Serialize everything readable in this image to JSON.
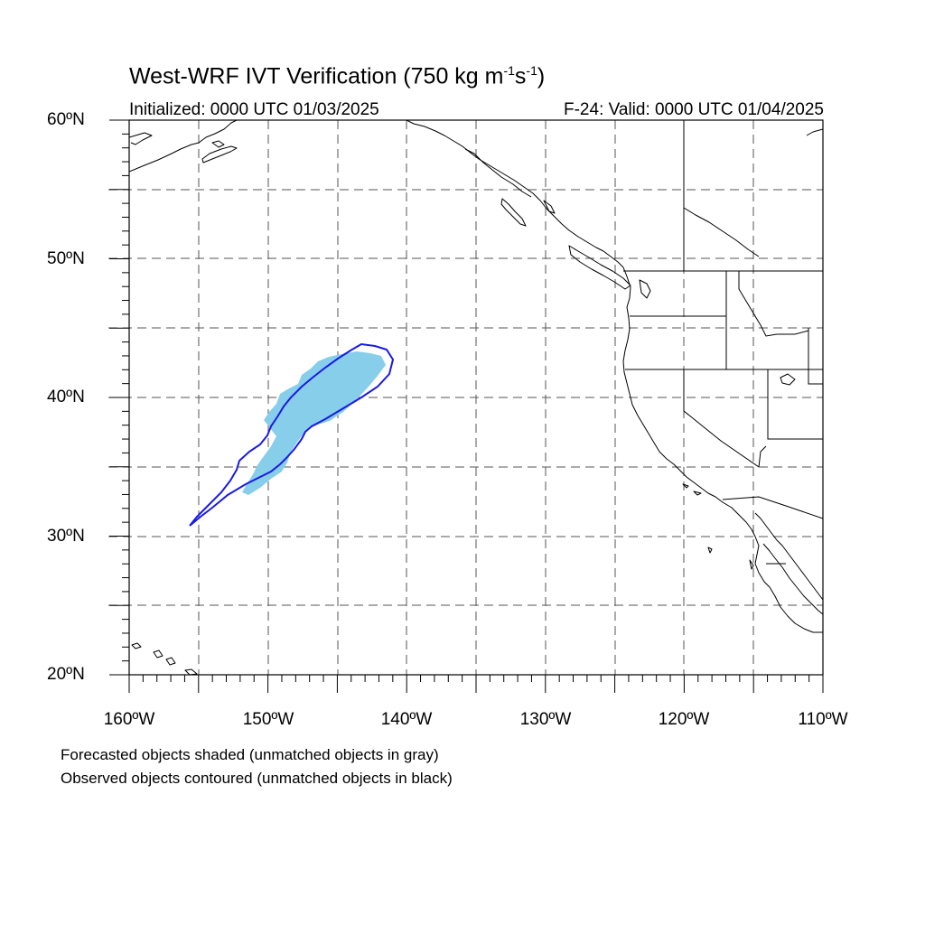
{
  "title": {
    "main": "West-WRF IVT Verification (750 kg m",
    "exp1": "-1",
    "mid": "s",
    "exp2": "-1",
    "close": ")"
  },
  "subtitle_left": "Initialized: 0000 UTC 01/03/2025",
  "subtitle_right": "F-24: Valid: 0000 UTC 01/04/2025",
  "lat_labels": [
    "60ºN",
    "50ºN",
    "40ºN",
    "30ºN",
    "20ºN"
  ],
  "lon_labels": [
    "160ºW",
    "150ºW",
    "140ºW",
    "130ºW",
    "120ºW",
    "110ºW"
  ],
  "footer": [
    "Forecasted objects shaded (unmatched objects in gray)",
    "Observed objects contoured (unmatched objects in black)"
  ],
  "colors": {
    "forecast_fill": "#87ceea",
    "observed_contour": "#1a1ae6",
    "coastline": "#000000",
    "grid": "#555555"
  },
  "map_extent": {
    "lon_min": -160,
    "lon_max": -110,
    "lat_min": 20,
    "lat_max": 60
  }
}
